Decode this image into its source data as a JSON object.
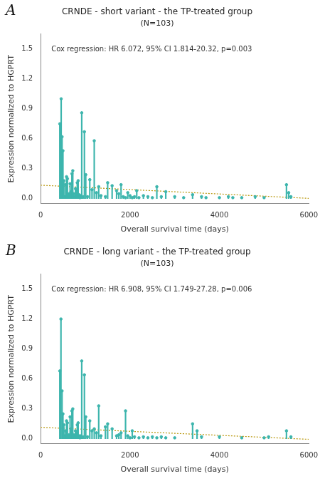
{
  "chart_data": [
    {
      "type": "lollipop",
      "label": "A",
      "title": "CRNDE - short variant - the TP-treated group",
      "subtitle": "(N=103)",
      "annotation": "Cox regression: HR 6.072, 95% CI 1.814-20.32, p=0.003",
      "xlabel": "Overall survival time (days)",
      "ylabel": "Expression normalized to HGPRT",
      "xlim": [
        0,
        6000
      ],
      "ylim": [
        -0.05,
        1.65
      ],
      "xticks": [
        0,
        2000,
        4000,
        6000
      ],
      "yticks": [
        {
          "value": 0,
          "label": "0.0"
        },
        0.3,
        0.6,
        0.9,
        1.2,
        1.5
      ],
      "grid": false,
      "series": [
        {
          "type": "lollipop",
          "color": "#3db5ad",
          "marker": "circle",
          "x": [
            430,
            460,
            480,
            500,
            520,
            540,
            560,
            580,
            600,
            620,
            640,
            660,
            680,
            700,
            720,
            740,
            760,
            780,
            800,
            820,
            840,
            860,
            880,
            900,
            920,
            950,
            980,
            1010,
            1050,
            1100,
            1150,
            1200,
            1250,
            1300,
            1350,
            1450,
            1500,
            1600,
            1700,
            1750,
            1800,
            1850,
            1900,
            1950,
            2000,
            2050,
            2100,
            2150,
            2200,
            2300,
            2400,
            2500,
            2600,
            2700,
            2800,
            3000,
            3200,
            3400,
            3600,
            3700,
            4000,
            4200,
            4300,
            4500,
            4800,
            5000,
            5500,
            5550,
            5600
          ],
          "values": [
            0.75,
            1.0,
            0.62,
            0.48,
            0.18,
            0.02,
            0.14,
            0.22,
            0.2,
            0.03,
            0.05,
            0.15,
            0.07,
            0.25,
            0.28,
            0.05,
            0.02,
            0.1,
            0.08,
            0.16,
            0.18,
            0.04,
            0.01,
            0.03,
            0.86,
            0.02,
            0.67,
            0.24,
            0.02,
            0.19,
            0.09,
            0.58,
            0.06,
            0.12,
            0.03,
            0.02,
            0.16,
            0.13,
            0.08,
            0.05,
            0.14,
            0.02,
            0.01,
            0.06,
            0.03,
            0.01,
            0.02,
            0.08,
            0.01,
            0.03,
            0.02,
            0.01,
            0.12,
            0.02,
            0.07,
            0.02,
            0.01,
            0.04,
            0.02,
            0.01,
            0.01,
            0.02,
            0.01,
            0.01,
            0.02,
            0.01,
            0.14,
            0.06,
            0.02
          ]
        },
        {
          "type": "line",
          "color": "#b8960a",
          "line_style": "dotted",
          "x": [
            0,
            6000
          ],
          "values": [
            0.135,
            0.003
          ]
        }
      ]
    },
    {
      "type": "lollipop",
      "label": "B",
      "title": "CRNDE - long variant - the TP-treated group",
      "subtitle": "(N=103)",
      "annotation": "Cox regression: HR 6.908, 95% CI 1.749-27.28, p=0.006",
      "xlabel": "Overall survival time (days)",
      "ylabel": "Expression normalized to HGPRT",
      "xlim": [
        0,
        6000
      ],
      "ylim": [
        -0.05,
        1.65
      ],
      "xticks": [
        0,
        2000,
        4000,
        6000
      ],
      "yticks": [
        {
          "value": 0,
          "label": "0.0"
        },
        0.3,
        0.6,
        0.9,
        1.2,
        1.5
      ],
      "grid": false,
      "series": [
        {
          "type": "lollipop",
          "color": "#3db5ad",
          "marker": "circle",
          "x": [
            430,
            455,
            480,
            500,
            520,
            540,
            560,
            580,
            600,
            620,
            640,
            660,
            680,
            700,
            720,
            740,
            760,
            780,
            800,
            820,
            840,
            860,
            880,
            900,
            920,
            950,
            980,
            1010,
            1050,
            1100,
            1150,
            1200,
            1250,
            1300,
            1350,
            1450,
            1500,
            1600,
            1700,
            1750,
            1800,
            1900,
            1950,
            2000,
            2050,
            2100,
            2200,
            2300,
            2400,
            2500,
            2600,
            2700,
            2800,
            3000,
            3400,
            3500,
            3600,
            4000,
            4500,
            5000,
            5100,
            5500,
            5600
          ],
          "values": [
            0.68,
            1.2,
            0.48,
            0.25,
            0.14,
            0.03,
            0.08,
            0.18,
            0.16,
            0.02,
            0.04,
            0.22,
            0.1,
            0.28,
            0.3,
            0.04,
            0.02,
            0.08,
            0.06,
            0.14,
            0.16,
            0.03,
            0.01,
            0.03,
            0.78,
            0.02,
            0.64,
            0.22,
            0.02,
            0.18,
            0.08,
            0.1,
            0.06,
            0.33,
            0.03,
            0.12,
            0.15,
            0.1,
            0.03,
            0.04,
            0.06,
            0.28,
            0.03,
            0.01,
            0.08,
            0.02,
            0.01,
            0.02,
            0.01,
            0.02,
            0.01,
            0.02,
            0.01,
            0.01,
            0.15,
            0.08,
            0.02,
            0.02,
            0.01,
            0.01,
            0.02,
            0.08,
            0.02
          ]
        },
        {
          "type": "line",
          "color": "#b8960a",
          "line_style": "dotted",
          "x": [
            0,
            6000
          ],
          "values": [
            0.115,
            -0.005
          ]
        }
      ]
    }
  ]
}
